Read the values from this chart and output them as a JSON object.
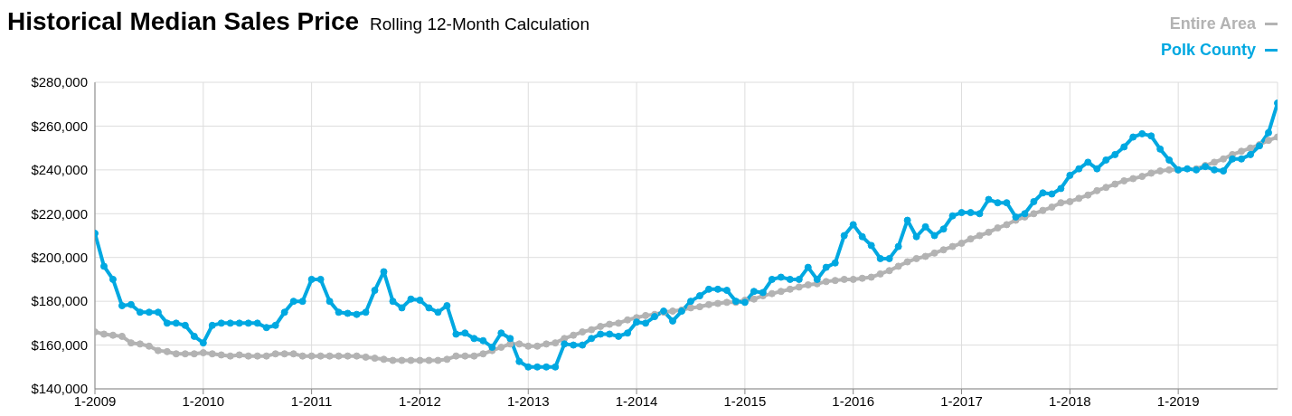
{
  "chart_data": {
    "type": "line",
    "title": "Historical Median Sales Price",
    "subtitle": "Rolling 12-Month Calculation",
    "categories": [
      "1-2009",
      null,
      null,
      null,
      null,
      null,
      null,
      null,
      null,
      null,
      null,
      null,
      "1-2010",
      null,
      null,
      null,
      null,
      null,
      null,
      null,
      null,
      null,
      null,
      null,
      "1-2011",
      null,
      null,
      null,
      null,
      null,
      null,
      null,
      null,
      null,
      null,
      null,
      "1-2012",
      null,
      null,
      null,
      null,
      null,
      null,
      null,
      null,
      null,
      null,
      null,
      "1-2013",
      null,
      null,
      null,
      null,
      null,
      null,
      null,
      null,
      null,
      null,
      null,
      "1-2014",
      null,
      null,
      null,
      null,
      null,
      null,
      null,
      null,
      null,
      null,
      null,
      "1-2015",
      null,
      null,
      null,
      null,
      null,
      null,
      null,
      null,
      null,
      null,
      null,
      "1-2016",
      null,
      null,
      null,
      null,
      null,
      null,
      null,
      null,
      null,
      null,
      null,
      "1-2017",
      null,
      null,
      null,
      null,
      null,
      null,
      null,
      null,
      null,
      null,
      null,
      "1-2018",
      null,
      null,
      null,
      null,
      null,
      null,
      null,
      null,
      null,
      null,
      null,
      "1-2019",
      null,
      null,
      null,
      null,
      null,
      null,
      null,
      null,
      null,
      null,
      null
    ],
    "series": [
      {
        "name": "Entire Area",
        "color": "#b3b3b3",
        "values": [
          166000,
          165000,
          164500,
          164000,
          161000,
          160500,
          159500,
          157500,
          157000,
          156000,
          156000,
          156000,
          156500,
          156000,
          155500,
          155000,
          155500,
          155000,
          155000,
          155000,
          156000,
          156000,
          156000,
          155000,
          155000,
          155000,
          155000,
          155000,
          155000,
          155000,
          154500,
          154000,
          153500,
          153000,
          153000,
          153000,
          153000,
          153000,
          153000,
          153500,
          155000,
          155000,
          155000,
          156000,
          157500,
          159000,
          160500,
          160500,
          159500,
          159500,
          160500,
          161000,
          163000,
          164500,
          166000,
          167000,
          168500,
          169500,
          170000,
          171500,
          172500,
          173500,
          174000,
          175000,
          175500,
          176000,
          177000,
          177500,
          178500,
          179000,
          179500,
          179500,
          180500,
          181000,
          182500,
          183500,
          184500,
          185500,
          186500,
          187500,
          188000,
          189000,
          189500,
          190000,
          190000,
          190500,
          191000,
          192500,
          194000,
          196000,
          198000,
          199500,
          200500,
          202000,
          203500,
          205000,
          206500,
          208500,
          210000,
          211500,
          213500,
          215000,
          217000,
          218500,
          220000,
          221500,
          223000,
          225000,
          225500,
          227000,
          228500,
          230500,
          232000,
          233500,
          235000,
          236000,
          237000,
          238500,
          239500,
          240000,
          240000,
          null,
          240500,
          242000,
          243500,
          245000,
          247000,
          248500,
          250000,
          251500,
          253500,
          255000
        ]
      },
      {
        "name": "Polk County",
        "color": "#00a8e1",
        "values": [
          211000,
          196000,
          190000,
          178000,
          178500,
          175000,
          175000,
          175000,
          170000,
          170000,
          169000,
          164000,
          161000,
          169000,
          170000,
          170000,
          170000,
          170000,
          170000,
          168000,
          169000,
          175000,
          180000,
          180000,
          190000,
          190000,
          180000,
          175000,
          174500,
          174000,
          175000,
          185000,
          193500,
          180000,
          177000,
          181000,
          180500,
          177000,
          175000,
          178000,
          165000,
          165500,
          163000,
          162000,
          159000,
          165500,
          163000,
          152500,
          150000,
          150000,
          150000,
          150000,
          160500,
          160000,
          160000,
          163000,
          165000,
          165000,
          164000,
          165500,
          170500,
          170000,
          173000,
          175500,
          171000,
          175500,
          180000,
          182500,
          185500,
          185500,
          185000,
          180000,
          179500,
          184500,
          184000,
          190000,
          191000,
          190000,
          190000,
          195500,
          190000,
          195500,
          197500,
          210000,
          215000,
          209500,
          205500,
          199500,
          199500,
          205000,
          217000,
          209500,
          214000,
          210000,
          213000,
          219000,
          220500,
          220500,
          220000,
          226500,
          225000,
          225000,
          218500,
          220000,
          225500,
          229500,
          229000,
          231500,
          237500,
          240500,
          243500,
          240500,
          244500,
          247000,
          250500,
          255000,
          256500,
          255500,
          249500,
          244500,
          240000,
          240500,
          240000,
          241500,
          240000,
          239500,
          245000,
          245000,
          247000,
          251000,
          257000,
          270500
        ]
      }
    ],
    "ylim": [
      140000,
      280000
    ],
    "yticks": [
      {
        "value": 140000,
        "label": "$140,000"
      },
      {
        "value": 160000,
        "label": "$160,000"
      },
      {
        "value": 180000,
        "label": "$180,000"
      },
      {
        "value": 200000,
        "label": "$200,000"
      },
      {
        "value": 220000,
        "label": "$220,000"
      },
      {
        "value": 240000,
        "label": "$240,000"
      },
      {
        "value": 260000,
        "label": "$260,000"
      },
      {
        "value": 280000,
        "label": "$280,000"
      }
    ],
    "grid": true,
    "legend": "top right",
    "marker": "circle",
    "line_style": "solid"
  }
}
